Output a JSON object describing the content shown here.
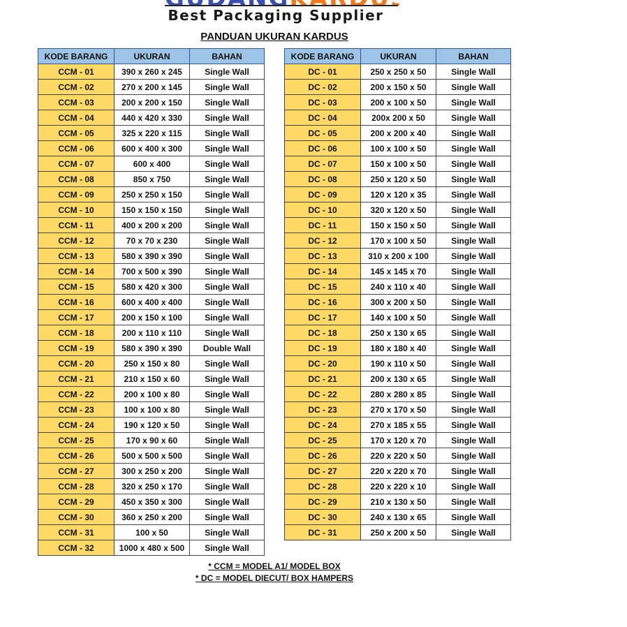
{
  "logo": {
    "part1": "GUDANG",
    "part2": "KARDUS",
    "tagline": "Best Packaging Supplier",
    "colors": {
      "blue": "#3a4fb0",
      "orange": "#f07a1a"
    }
  },
  "title": "PANDUAN UKURAN KARDUS",
  "headers": [
    "KODE BARANG",
    "UKURAN",
    "BAHAN"
  ],
  "colors": {
    "header": "#9dc3e6",
    "code_cell": "#ffd966"
  },
  "ccm_table": [
    [
      "CCM - 01",
      "390 x 260 x 245",
      "Single Wall"
    ],
    [
      "CCM - 02",
      "270 x 200 x 145",
      "Single Wall"
    ],
    [
      "CCM - 03",
      "200 x 200 x 150",
      "Single Wall"
    ],
    [
      "CCM - 04",
      "440 x 420 x 330",
      "Single Wall"
    ],
    [
      "CCM - 05",
      "325 x 220 x 115",
      "Single Wall"
    ],
    [
      "CCM - 06",
      "600 x 400 x 300",
      "Single Wall"
    ],
    [
      "CCM - 07",
      "600 x 400",
      "Single Wall"
    ],
    [
      "CCM - 08",
      "850 x 750",
      "Single Wall"
    ],
    [
      "CCM - 09",
      "250 x 250 x 150",
      "Single Wall"
    ],
    [
      "CCM - 10",
      "150 x 150 x 150",
      "Single Wall"
    ],
    [
      "CCM - 11",
      "400 x 200 x 200",
      "Single Wall"
    ],
    [
      "CCM - 12",
      "70 x 70 x 230",
      "Single Wall"
    ],
    [
      "CCM - 13",
      "580 x 390 x 390",
      "Single Wall"
    ],
    [
      "CCM - 14",
      "700 x 500 x 390",
      "Single Wall"
    ],
    [
      "CCM - 15",
      "580 x 420 x 300",
      "Single Wall"
    ],
    [
      "CCM - 16",
      "600 x 400 x 400",
      "Single Wall"
    ],
    [
      "CCM - 17",
      "200 x 150 x 100",
      "Single Wall"
    ],
    [
      "CCM - 18",
      "200 x 110 x 110",
      "Single Wall"
    ],
    [
      "CCM - 19",
      "580 x 390 x 390",
      "Double Wall"
    ],
    [
      "CCM - 20",
      "250 x 150 x 80",
      "Single Wall"
    ],
    [
      "CCM - 21",
      "210 x 150 x 60",
      "Single Wall"
    ],
    [
      "CCM - 22",
      "200 x 100 x 80",
      "Single Wall"
    ],
    [
      "CCM - 23",
      "100 x 100 x 80",
      "Single Wall"
    ],
    [
      "CCM - 24",
      "190 x 120 x 50",
      "Single Wall"
    ],
    [
      "CCM - 25",
      "170 x 90 x 60",
      "Single Wall"
    ],
    [
      "CCM - 26",
      "500 x 500 x 500",
      "Single Wall"
    ],
    [
      "CCM - 27",
      "300 x 250 x 200",
      "Single Wall"
    ],
    [
      "CCM - 28",
      "320 x 250 x 170",
      "Single Wall"
    ],
    [
      "CCM - 29",
      "450 x 350 x 300",
      "Single Wall"
    ],
    [
      "CCM - 30",
      "360 x 250 x 200",
      "Single Wall"
    ],
    [
      "CCM - 31",
      "100 x 50",
      "Single Wall"
    ],
    [
      "CCM - 32",
      "1000 x 480 x 500",
      "Single Wall"
    ]
  ],
  "dc_table": [
    [
      "DC - 01",
      "250 x 250 x 50",
      "Single Wall"
    ],
    [
      "DC - 02",
      "200 x 150 x 50",
      "Single Wall"
    ],
    [
      "DC - 03",
      "200 x 100 x 50",
      "Single Wall"
    ],
    [
      "DC - 04",
      "200x 200 x 50",
      "Single Wall"
    ],
    [
      "DC - 05",
      "200 x 200 x 40",
      "Single Wall"
    ],
    [
      "DC - 06",
      "100 x 100 x 50",
      "Single Wall"
    ],
    [
      "DC - 07",
      "150 x 100 x 50",
      "Single Wall"
    ],
    [
      "DC - 08",
      "250 x 120 x 50",
      "Single Wall"
    ],
    [
      "DC - 09",
      "120 x 120 x 35",
      "Single Wall"
    ],
    [
      "DC - 10",
      "320 x 120 x 50",
      "Single Wall"
    ],
    [
      "DC - 11",
      "150 x 150 x 50",
      "Single Wall"
    ],
    [
      "DC - 12",
      "170 x 100 x 50",
      "Single Wall"
    ],
    [
      "DC - 13",
      "310 x 200 x 100",
      "Single Wall"
    ],
    [
      "DC - 14",
      "145 x 145 x 70",
      "Single Wall"
    ],
    [
      "DC - 15",
      "240 x 110 x 40",
      "Single Wall"
    ],
    [
      "DC - 16",
      "300 x 200 x 50",
      "Single Wall"
    ],
    [
      "DC - 17",
      "140 x 100 x 50",
      "Single Wall"
    ],
    [
      "DC - 18",
      "250 x 130 x 65",
      "Single Wall"
    ],
    [
      "DC - 19",
      "180 x 180 x 40",
      "Single Wall"
    ],
    [
      "DC - 20",
      "190 x 110 x 50",
      "Single Wall"
    ],
    [
      "DC - 21",
      "200 x 130 x 65",
      "Single Wall"
    ],
    [
      "DC - 22",
      "280 x 280 x 85",
      "Single Wall"
    ],
    [
      "DC - 23",
      "270 x 170 x 50",
      "Single Wall"
    ],
    [
      "DC - 24",
      "270 x 185 x 55",
      "Single Wall"
    ],
    [
      "DC - 25",
      "170 x 120 x 70",
      "Single Wall"
    ],
    [
      "DC - 26",
      "220 x 220 x 50",
      "Single Wall"
    ],
    [
      "DC - 27",
      "220 x 220 x 70",
      "Single Wall"
    ],
    [
      "DC - 28",
      "220 x 220 x 10",
      "Single Wall"
    ],
    [
      "DC - 29",
      "210 x 130 x 50",
      "Single Wall"
    ],
    [
      "DC - 30",
      "240 x 130 x 65",
      "Single Wall"
    ],
    [
      "DC - 31",
      "250 x 200 x 50",
      "Single Wall"
    ]
  ],
  "notes": [
    "* CCM = MODEL A1/ MODEL BOX",
    "* DC = MODEL DIECUT/ BOX HAMPERS"
  ]
}
